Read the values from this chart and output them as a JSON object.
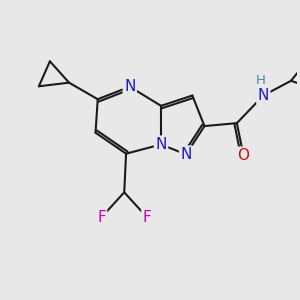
{
  "bg": "#e8e8e8",
  "bond_color": "#1a1a1a",
  "bond_lw": 1.5,
  "dbo": 0.07,
  "colors": {
    "N": "#1a1acc",
    "O": "#cc1111",
    "F": "#cc00aa",
    "H": "#4a8899",
    "C": "#1a1a1a"
  },
  "fs": 11,
  "fs_small": 9.5,
  "xlim": [
    -3.8,
    4.2
  ],
  "ylim": [
    -3.2,
    3.0
  ]
}
